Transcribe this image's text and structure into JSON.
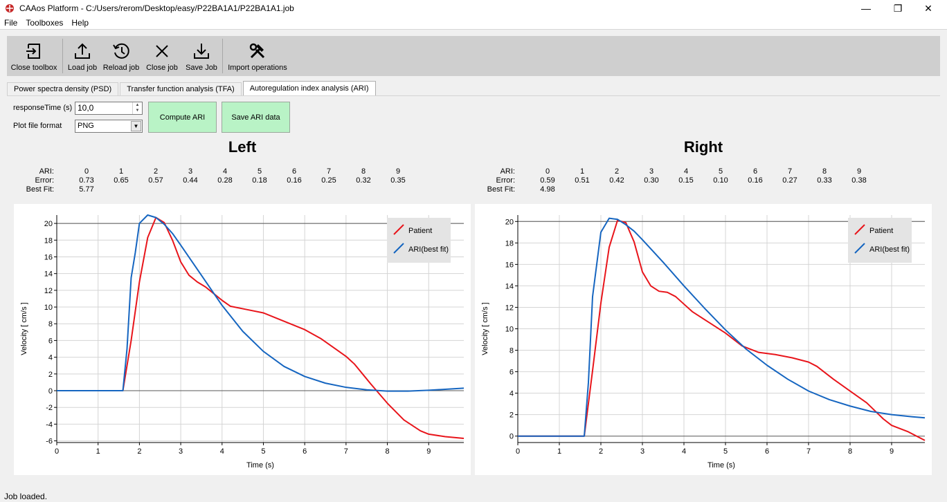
{
  "window": {
    "title": "CAAos Platform - C:/Users/rerom/Desktop/easy/P22BA1A1/P22BA1A1.job",
    "minimize": "—",
    "restore": "❐",
    "close": "✕"
  },
  "menu": [
    "File",
    "Toolboxes",
    "Help"
  ],
  "toolbar": {
    "close_toolbox": "Close toolbox",
    "load_job": "Load job",
    "reload_job": "Reload job",
    "close_job": "Close job",
    "save_job": "Save Job",
    "import_operations": "Import operations"
  },
  "tabs": [
    {
      "label": "Power spectra density (PSD)"
    },
    {
      "label": "Transfer function analysis (TFA)"
    },
    {
      "label": "Autoregulation index analysis (ARI)"
    }
  ],
  "controls": {
    "response_time_label": "responseTime (s)",
    "response_time_value": "10,0",
    "plot_format_label": "Plot file format",
    "plot_format_value": "PNG",
    "compute_ari": "Compute ARI",
    "save_ari": "Save ARI data"
  },
  "table_labels": {
    "ari": "ARI:",
    "error": "Error:",
    "best_fit": "Best Fit:"
  },
  "left": {
    "title": "Left",
    "ari": [
      "0",
      "1",
      "2",
      "3",
      "4",
      "5",
      "6",
      "7",
      "8",
      "9"
    ],
    "error": [
      "0.73",
      "0.65",
      "0.57",
      "0.44",
      "0.28",
      "0.18",
      "0.16",
      "0.25",
      "0.32",
      "0.35"
    ],
    "best_fit": "5.77"
  },
  "right": {
    "title": "Right",
    "ari": [
      "0",
      "1",
      "2",
      "3",
      "4",
      "5",
      "6",
      "7",
      "8",
      "9"
    ],
    "error": [
      "0.59",
      "0.51",
      "0.42",
      "0.30",
      "0.15",
      "0.10",
      "0.16",
      "0.27",
      "0.33",
      "0.38"
    ],
    "best_fit": "4.98"
  },
  "colors": {
    "patient": "#e8141a",
    "ari": "#1565c0",
    "button_green": "#b9f3c6"
  },
  "chart_data": [
    {
      "type": "line",
      "xlabel": "Time (s)",
      "ylabel": "Velocity [ cm/s ]",
      "xlim": [
        0,
        9.85
      ],
      "ylim": [
        -6.2,
        21
      ],
      "xticks": [
        0,
        1,
        2,
        3,
        4,
        5,
        6,
        7,
        8,
        9
      ],
      "yticks": [
        -6,
        -4,
        -2,
        0,
        2,
        4,
        6,
        8,
        10,
        12,
        14,
        16,
        18,
        20
      ],
      "grid": true,
      "legend": "top-right",
      "series": [
        {
          "name": "Patient",
          "color": "#e8141a",
          "x": [
            0,
            1.6,
            1.8,
            2.0,
            2.2,
            2.4,
            2.6,
            2.8,
            3.0,
            3.2,
            3.4,
            3.6,
            3.8,
            4.0,
            4.2,
            4.6,
            5.0,
            5.4,
            6.0,
            6.4,
            6.8,
            7.0,
            7.2,
            7.4,
            7.6,
            8.0,
            8.4,
            8.8,
            9.0,
            9.4,
            9.85
          ],
          "y": [
            0,
            0,
            6,
            13,
            18.3,
            20.7,
            20.1,
            18,
            15.4,
            13.8,
            13,
            12.4,
            11.6,
            10.8,
            10.1,
            9.7,
            9.3,
            8.5,
            7.3,
            6.2,
            4.8,
            4.1,
            3.2,
            2,
            0.8,
            -1.5,
            -3.5,
            -4.8,
            -5.2,
            -5.5,
            -5.7
          ]
        },
        {
          "name": "ARI(best fit)",
          "color": "#1565c0",
          "x": [
            0,
            1.6,
            1.7,
            1.8,
            1.9,
            2.0,
            2.2,
            2.4,
            2.6,
            2.8,
            3.0,
            3.5,
            4.0,
            4.5,
            5.0,
            5.5,
            6.0,
            6.5,
            7.0,
            7.5,
            8.0,
            8.5,
            9.0,
            9.5,
            9.85
          ],
          "y": [
            0,
            0,
            5,
            13.5,
            16.5,
            20,
            21,
            20.7,
            19.9,
            18.8,
            17.4,
            13.8,
            10.2,
            7.1,
            4.7,
            2.9,
            1.7,
            0.9,
            0.4,
            0.1,
            -0.05,
            -0.05,
            0.05,
            0.2,
            0.3
          ]
        }
      ]
    },
    {
      "type": "line",
      "xlabel": "Time (s)",
      "ylabel": "Velocity [ cm/s ]",
      "xlim": [
        0,
        9.8
      ],
      "ylim": [
        -0.6,
        20.6
      ],
      "xticks": [
        0,
        1,
        2,
        3,
        4,
        5,
        6,
        7,
        8,
        9
      ],
      "yticks": [
        0,
        2,
        4,
        6,
        8,
        10,
        12,
        14,
        16,
        18,
        20
      ],
      "grid": true,
      "legend": "top-right",
      "series": [
        {
          "name": "Patient",
          "color": "#e8141a",
          "x": [
            0,
            1.6,
            1.8,
            2.0,
            2.2,
            2.4,
            2.6,
            2.8,
            3.0,
            3.2,
            3.4,
            3.6,
            3.8,
            4.0,
            4.2,
            4.6,
            5.0,
            5.4,
            5.8,
            6.2,
            6.6,
            7.0,
            7.2,
            7.6,
            8.0,
            8.4,
            8.8,
            9.0,
            9.4,
            9.8
          ],
          "y": [
            0,
            0,
            6.1,
            12.4,
            17.6,
            20.1,
            19.9,
            18.1,
            15.3,
            14,
            13.5,
            13.4,
            13,
            12.3,
            11.6,
            10.6,
            9.6,
            8.4,
            7.8,
            7.6,
            7.3,
            6.9,
            6.5,
            5.3,
            4.2,
            3.1,
            1.6,
            1,
            0.4,
            -0.4
          ]
        },
        {
          "name": "ARI(best fit)",
          "color": "#1565c0",
          "x": [
            0,
            1.6,
            1.7,
            1.8,
            1.9,
            2.0,
            2.2,
            2.4,
            2.6,
            2.8,
            3.0,
            3.5,
            4.0,
            4.5,
            5.0,
            5.5,
            6.0,
            6.5,
            7.0,
            7.5,
            8.0,
            8.5,
            9.0,
            9.5,
            9.8
          ],
          "y": [
            0,
            0,
            5,
            13,
            16,
            19,
            20.3,
            20.2,
            19.7,
            19.1,
            18.3,
            16.2,
            14,
            11.9,
            9.9,
            8.1,
            6.6,
            5.3,
            4.2,
            3.4,
            2.8,
            2.3,
            2,
            1.8,
            1.7
          ]
        }
      ]
    }
  ],
  "status": "Job loaded."
}
